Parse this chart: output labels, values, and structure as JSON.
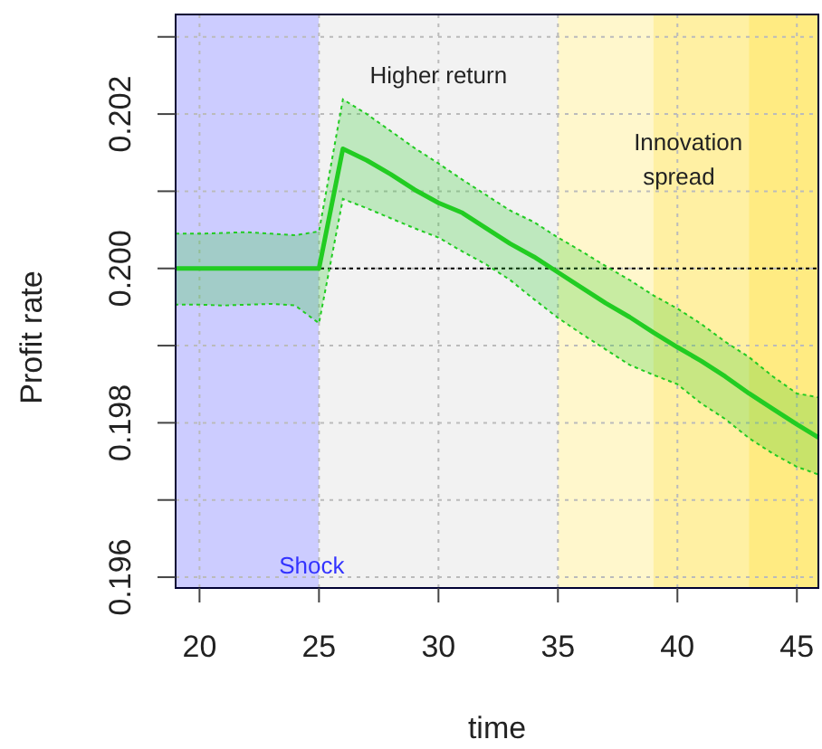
{
  "chart_data": {
    "type": "line",
    "xlabel": "time",
    "ylabel": "Profit rate",
    "xlim": [
      19,
      45.9
    ],
    "ylim": [
      0.19586,
      0.20329
    ],
    "xticks": [
      20,
      25,
      30,
      35,
      40,
      45
    ],
    "yticks": [
      {
        "value": 0.196,
        "label": "0.196"
      },
      {
        "value": 0.197,
        "label": null
      },
      {
        "value": 0.198,
        "label": "0.198"
      },
      {
        "value": 0.199,
        "label": null
      },
      {
        "value": 0.2,
        "label": "0.200"
      },
      {
        "value": 0.201,
        "label": null
      },
      {
        "value": 0.202,
        "label": "0.202"
      },
      {
        "value": 0.203,
        "label": null
      }
    ],
    "grid": true,
    "marker": "none",
    "line_style": "solid",
    "bands": [
      {
        "axis": "x",
        "from": 19,
        "to": 25,
        "label": "Shock",
        "color": "#ccccff"
      },
      {
        "axis": "x",
        "from": 25,
        "to": 35,
        "label": "Higher return",
        "color": "#f2f2f2"
      },
      {
        "axis": "x",
        "from": 35,
        "to": 45.9,
        "label": "Innovation spread",
        "color": "#ffd700"
      },
      {
        "axis": "x",
        "from": 39,
        "to": 45.9,
        "color": "#ffd700"
      },
      {
        "axis": "x",
        "from": 43,
        "to": 45.9,
        "color": "#ffd700"
      }
    ],
    "ref_lines": [
      {
        "axis": "y",
        "value": 0.2,
        "color": "#000000",
        "line_style": "dotted"
      }
    ],
    "x": [
      19,
      20,
      21,
      22,
      23,
      24,
      25,
      26,
      27,
      28,
      29,
      30,
      31,
      32,
      33,
      34,
      35,
      36,
      37,
      38,
      39,
      40,
      41,
      42,
      43,
      44,
      45,
      45.9
    ],
    "series": [
      {
        "color": "#22cc22",
        "values": [
          0.2,
          0.2,
          0.2,
          0.2,
          0.2,
          0.2,
          0.2,
          0.20155,
          0.2014,
          0.20122,
          0.20102,
          0.20085,
          0.20072,
          0.20052,
          0.20032,
          0.20015,
          0.19995,
          0.19975,
          0.19955,
          0.19937,
          0.19917,
          0.19898,
          0.1988,
          0.1986,
          0.19838,
          0.19818,
          0.19798,
          0.19781
        ],
        "upper": [
          0.20045,
          0.20045,
          0.20046,
          0.20047,
          0.20045,
          0.20043,
          0.20048,
          0.20219,
          0.202,
          0.20178,
          0.20156,
          0.20136,
          0.20115,
          0.20095,
          0.20075,
          0.2006,
          0.2004,
          0.20022,
          0.20003,
          0.19985,
          0.19965,
          0.19948,
          0.19928,
          0.19905,
          0.19885,
          0.1986,
          0.19838,
          0.19833
        ],
        "lower": [
          0.19953,
          0.19953,
          0.19952,
          0.19953,
          0.19954,
          0.19952,
          0.19929,
          0.2009,
          0.20078,
          0.20065,
          0.20052,
          0.2004,
          0.20022,
          0.20005,
          0.19985,
          0.1996,
          0.19936,
          0.19915,
          0.19895,
          0.19875,
          0.19862,
          0.1985,
          0.19825,
          0.19805,
          0.1978,
          0.1976,
          0.19743,
          0.19733
        ]
      }
    ]
  }
}
